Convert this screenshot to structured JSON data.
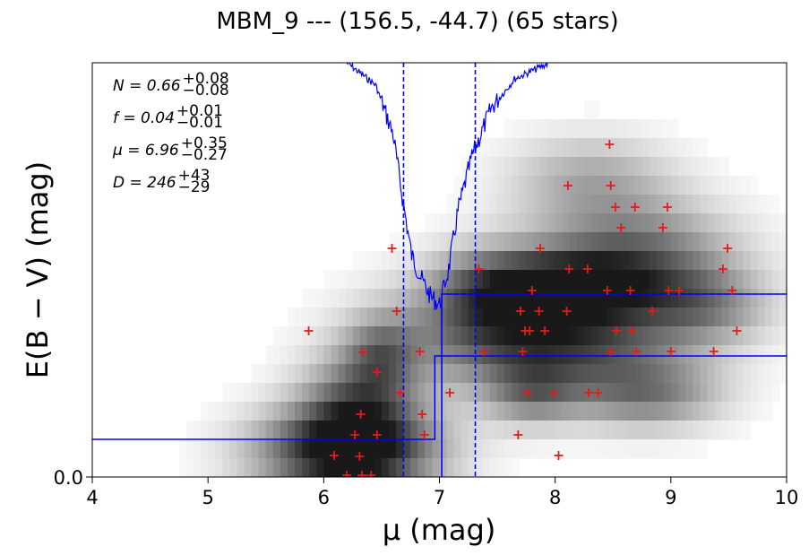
{
  "chart_data": {
    "type": "scatter",
    "title": "MBM_9 --- (156.5, -44.7) (65 stars)",
    "xlabel": "μ (mag)",
    "ylabel": "E(B − V) (mag)",
    "xlim": [
      4,
      10
    ],
    "x_ticks": [
      "4",
      "5",
      "6",
      "7",
      "8",
      "9",
      "10"
    ],
    "y_ticks": [
      "0.0"
    ],
    "grid": false,
    "annotations": [
      {
        "main": "N = 0.66",
        "sup": "+0.08",
        "sub": "−0.08"
      },
      {
        "main": "f = 0.04",
        "sup": "+0.01",
        "sub": "−0.01"
      },
      {
        "main": "μ = 6.96",
        "sup": "+0.35",
        "sub": "−0.27"
      },
      {
        "main": "D = 246",
        "sup": "+43",
        "sub": "−29"
      }
    ],
    "vlines": [
      6.69,
      7.31
    ],
    "colors": {
      "stars": "#e41a1c",
      "model": "#0000ff",
      "background": "#000000"
    }
  }
}
